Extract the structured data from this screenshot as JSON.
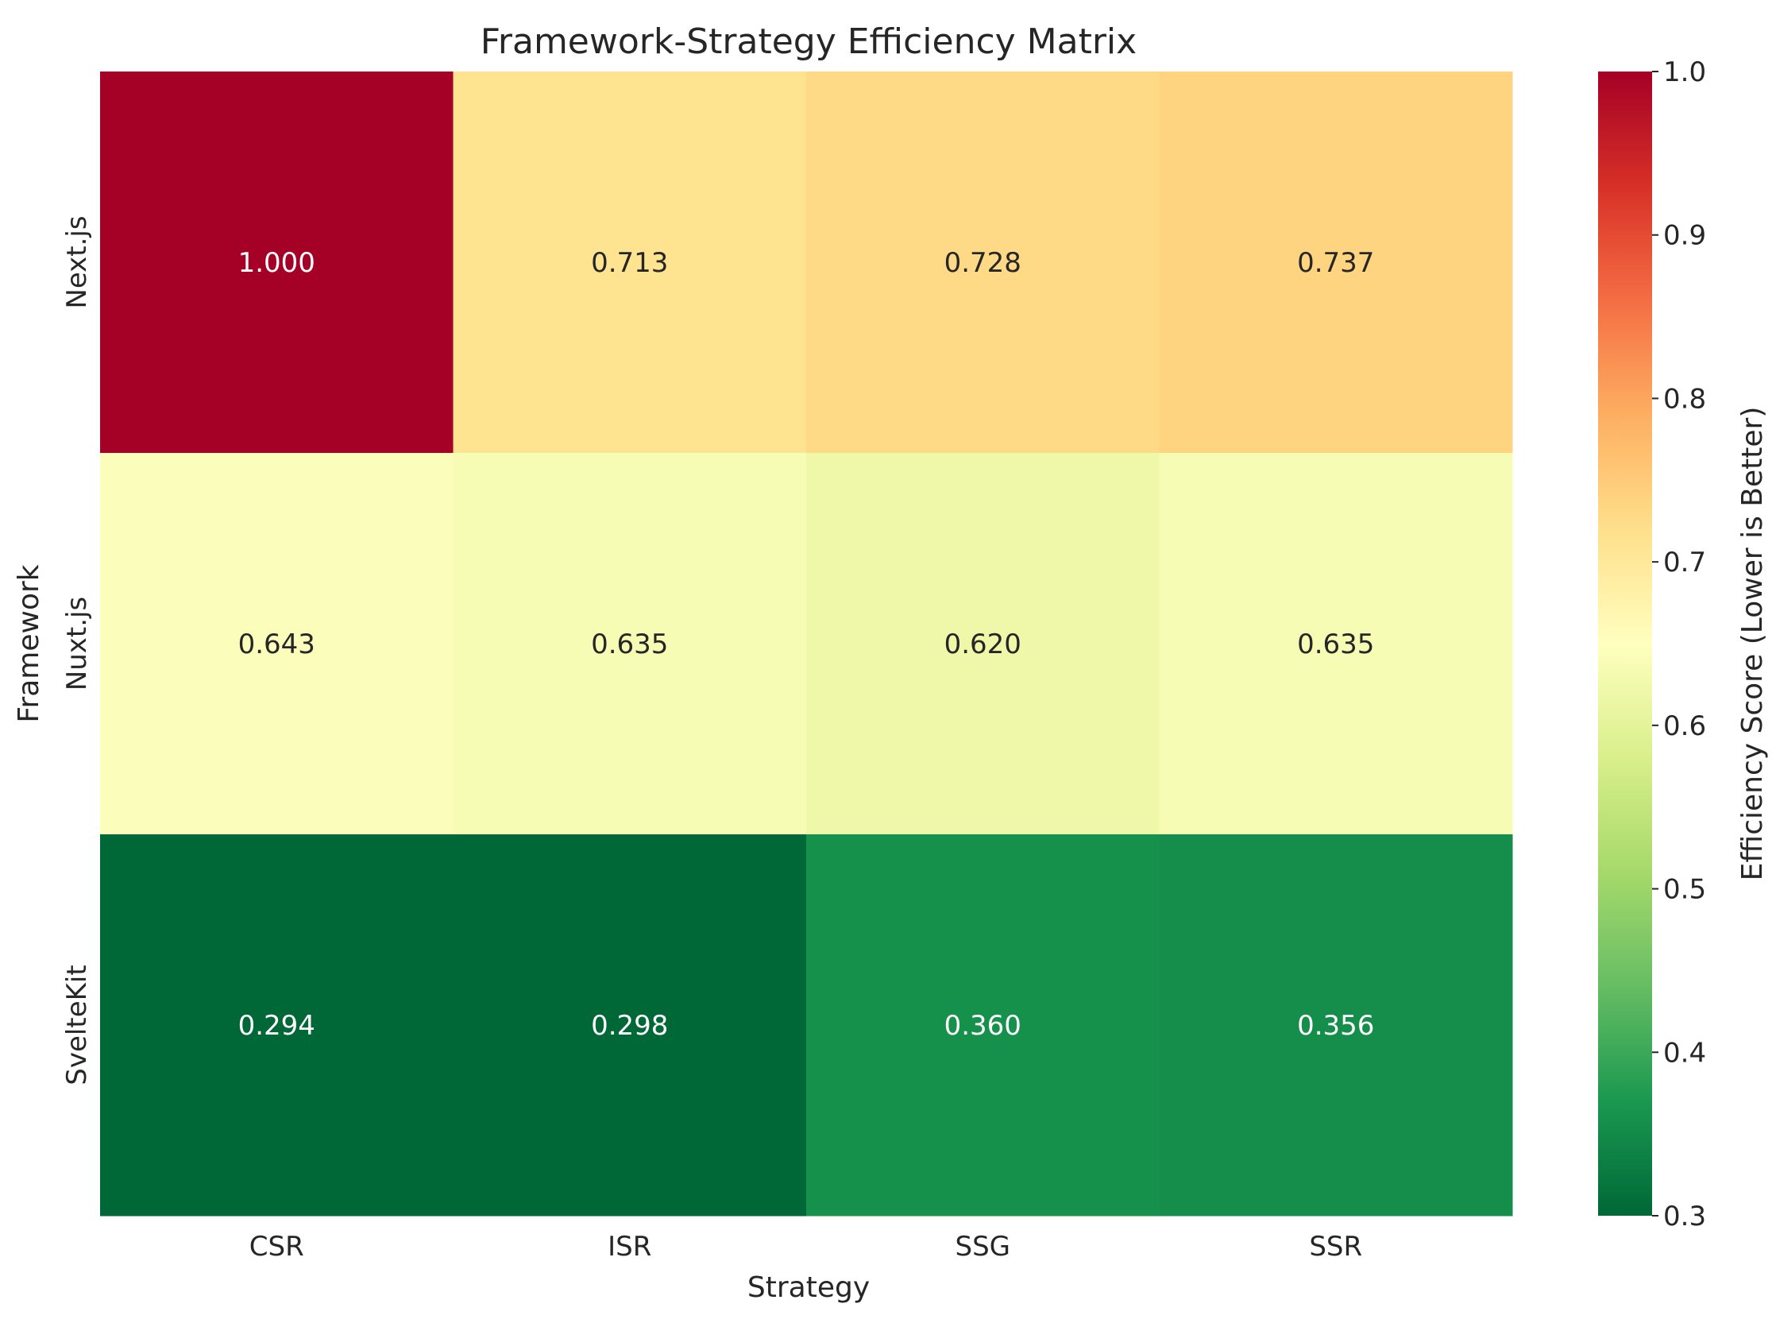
{
  "chart_data": {
    "type": "heatmap",
    "title": "Framework-Strategy Efficiency Matrix",
    "xlabel": "Strategy",
    "ylabel": "Framework",
    "x_categories": [
      "CSR",
      "ISR",
      "SSG",
      "SSR"
    ],
    "y_categories": [
      "Next.js",
      "Nuxt.js",
      "SvelteKit"
    ],
    "values": [
      [
        1.0,
        0.713,
        0.728,
        0.737
      ],
      [
        0.643,
        0.635,
        0.62,
        0.635
      ],
      [
        0.294,
        0.298,
        0.36,
        0.356
      ]
    ],
    "value_labels": [
      [
        "1.000",
        "0.713",
        "0.728",
        "0.737"
      ],
      [
        "0.643",
        "0.635",
        "0.620",
        "0.635"
      ],
      [
        "0.294",
        "0.298",
        "0.360",
        "0.356"
      ]
    ],
    "colormap": "RdYlGn_r",
    "vmin": 0.3,
    "vmax": 1.0,
    "colorbar": {
      "label": "Efficiency Score (Lower is Better)",
      "ticks": [
        0.3,
        0.4,
        0.5,
        0.6,
        0.7,
        0.8,
        0.9,
        1.0
      ],
      "tick_labels": [
        "0.3",
        "0.4",
        "0.5",
        "0.6",
        "0.7",
        "0.8",
        "0.9",
        "1.0"
      ]
    },
    "grid": false
  }
}
